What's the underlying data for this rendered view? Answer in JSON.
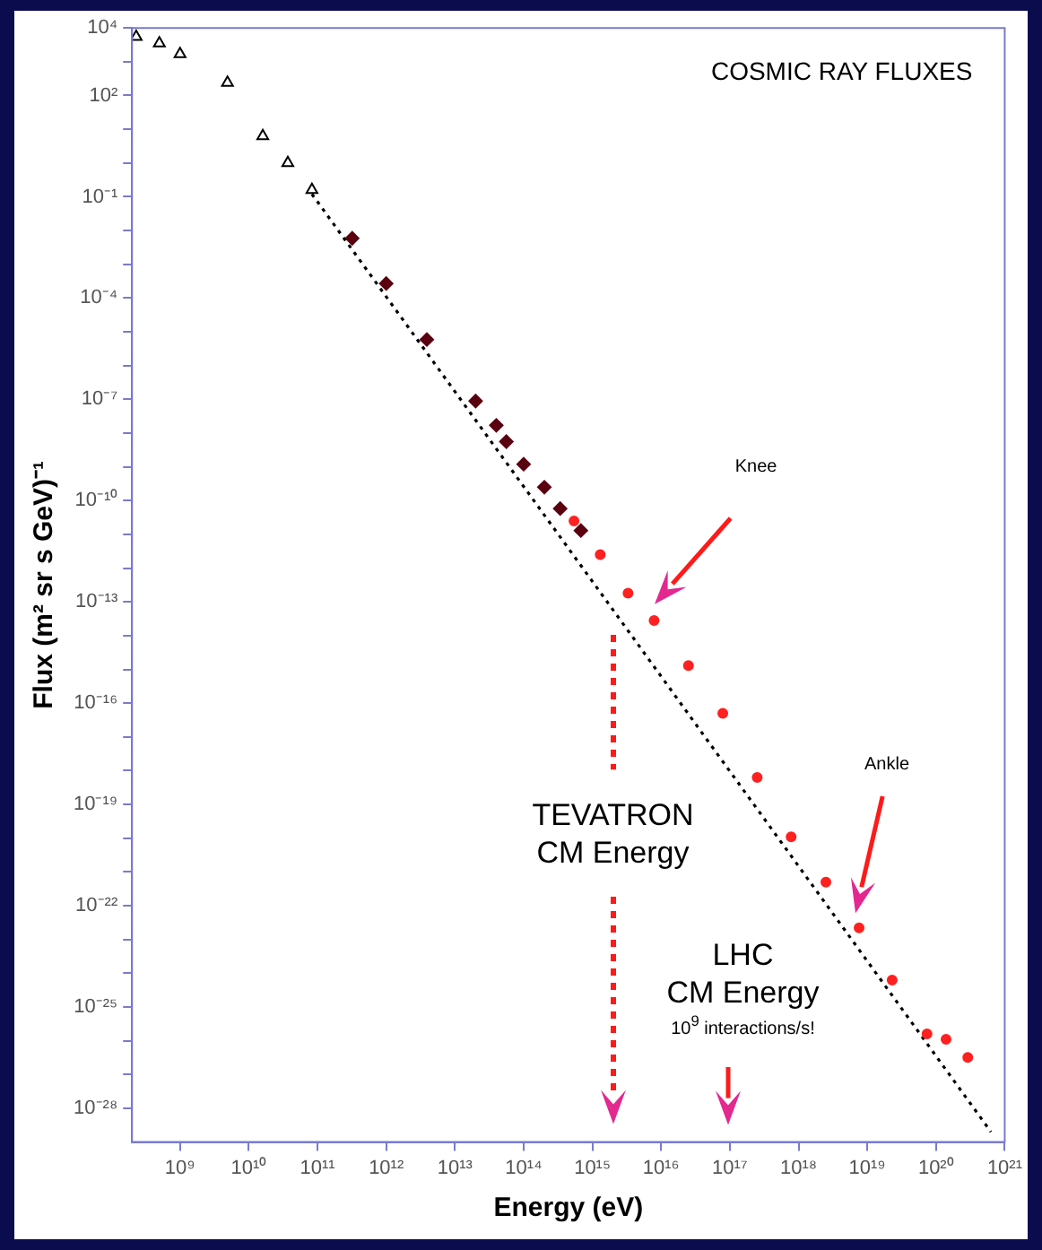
{
  "chart_data": {
    "type": "scatter",
    "title": "COSMIC RAY FLUXES",
    "xlabel": "Energy (eV)",
    "ylabel": "Flux (m² sr s GeV)⁻¹",
    "log": "xy",
    "grid": false,
    "legend": false,
    "xlim": [
      200000000.0,
      1e+21
    ],
    "ylim": [
      1e-29,
      10000.0
    ],
    "xticks": [
      {
        "value": 1000000000.0,
        "label": "10⁹"
      },
      {
        "value": 10000000000.0,
        "label": "10¹⁰"
      },
      {
        "value": 100000000000.0,
        "label": "10¹¹"
      },
      {
        "value": 1000000000000.0,
        "label": "10¹²"
      },
      {
        "value": 10000000000000.0,
        "label": "10¹³"
      },
      {
        "value": 100000000000000.0,
        "label": "10¹⁴"
      },
      {
        "value": 1000000000000000.0,
        "label": "10¹⁵"
      },
      {
        "value": 1e+16,
        "label": "10¹⁶"
      },
      {
        "value": 1e+17,
        "label": "10¹⁷"
      },
      {
        "value": 1e+18,
        "label": "10¹⁸"
      },
      {
        "value": 1e+19,
        "label": "10¹⁹"
      },
      {
        "value": 1e+20,
        "label": "10²⁰"
      },
      {
        "value": 1e+21,
        "label": "10²¹"
      }
    ],
    "yticks": [
      {
        "value": 10000.0,
        "label": "10⁴"
      },
      {
        "value": 1000.0,
        "label": null
      },
      {
        "value": 100.0,
        "label": "10²"
      },
      {
        "value": 10.0,
        "label": null
      },
      {
        "value": 1,
        "label": null
      },
      {
        "value": 0.1,
        "label": "10⁻¹"
      },
      {
        "value": 0.01,
        "label": null
      },
      {
        "value": 0.001,
        "label": null
      },
      {
        "value": 0.0001,
        "label": "10⁻⁴"
      },
      {
        "value": 1e-05,
        "label": null
      },
      {
        "value": 1e-06,
        "label": null
      },
      {
        "value": 1e-07,
        "label": "10⁻⁷"
      },
      {
        "value": 1e-08,
        "label": null
      },
      {
        "value": 1e-09,
        "label": null
      },
      {
        "value": 1e-10,
        "label": "10⁻¹⁰"
      },
      {
        "value": 1e-11,
        "label": null
      },
      {
        "value": 1e-12,
        "label": null
      },
      {
        "value": 1e-13,
        "label": "10⁻¹³"
      },
      {
        "value": 1e-14,
        "label": null
      },
      {
        "value": 1e-15,
        "label": null
      },
      {
        "value": 1e-16,
        "label": "10⁻¹⁶"
      },
      {
        "value": 1e-17,
        "label": null
      },
      {
        "value": 1e-18,
        "label": null
      },
      {
        "value": 1e-19,
        "label": "10⁻¹⁹"
      },
      {
        "value": 1e-20,
        "label": null
      },
      {
        "value": 1e-21,
        "label": null
      },
      {
        "value": 1e-22,
        "label": "10⁻²²"
      },
      {
        "value": 1e-23,
        "label": null
      },
      {
        "value": 1e-24,
        "label": null
      },
      {
        "value": 1e-25,
        "label": "10⁻²⁵"
      },
      {
        "value": 1e-26,
        "label": null
      },
      {
        "value": 1e-27,
        "label": null
      },
      {
        "value": 1e-28,
        "label": "10⁻²⁸"
      }
    ],
    "series": [
      {
        "marker": "triangle",
        "color": "#000000",
        "x": [
          230000000.0,
          500000000.0,
          1000000000.0,
          4900000000.0,
          16000000000.0,
          37000000000.0,
          83000000000.0
        ],
        "values": [
          5500.0,
          3500.0,
          1700.0,
          240.0,
          6.3,
          1.0,
          0.16
        ]
      },
      {
        "marker": "diamond",
        "color": "#5a0010",
        "x": [
          320000000000.0,
          1000000000000.0,
          3900000000000.0,
          20000000000000.0,
          40000000000000.0,
          56000000000000.0,
          100000000000000.0,
          200000000000000.0,
          340000000000000.0,
          680000000000000.0
        ],
        "values": [
          0.0059,
          0.00027,
          5.9e-06,
          8.9e-08,
          1.7e-08,
          5.6e-09,
          1.2e-09,
          2.5e-10,
          5.8e-11,
          1.3e-11
        ]
      },
      {
        "marker": "circle",
        "color": "#ff2020",
        "x": [
          540000000000000.0,
          1300000000000000.0,
          3300000000000000.0,
          7900000000000000.0,
          2.5e+16,
          7.9e+16,
          2.5e+17,
          7.8e+17,
          2.5e+18,
          7.6e+18,
          2.3e+19,
          7.4e+19,
          1.4e+20,
          2.9e+20
        ],
        "values": [
          2.5e-11,
          2.5e-12,
          1.8e-13,
          2.8e-14,
          1.3e-15,
          5e-17,
          6.3e-19,
          1.1e-20,
          5e-22,
          2.2e-23,
          6.3e-25,
          1.6e-26,
          1.1e-26,
          3.2e-27
        ]
      },
      {
        "type": "line",
        "marker": "none",
        "line_style": "dotted",
        "color": "#000000",
        "x": [
          83000000000.0,
          6.3e+20
        ],
        "values": [
          0.12,
          2e-29
        ]
      }
    ],
    "annotations": [
      "Knee",
      "Ankle",
      "TEVATRON\nCM Energy",
      "LHC\nCM Energy\n10$^{9}$ interactions/s!"
    ]
  }
}
